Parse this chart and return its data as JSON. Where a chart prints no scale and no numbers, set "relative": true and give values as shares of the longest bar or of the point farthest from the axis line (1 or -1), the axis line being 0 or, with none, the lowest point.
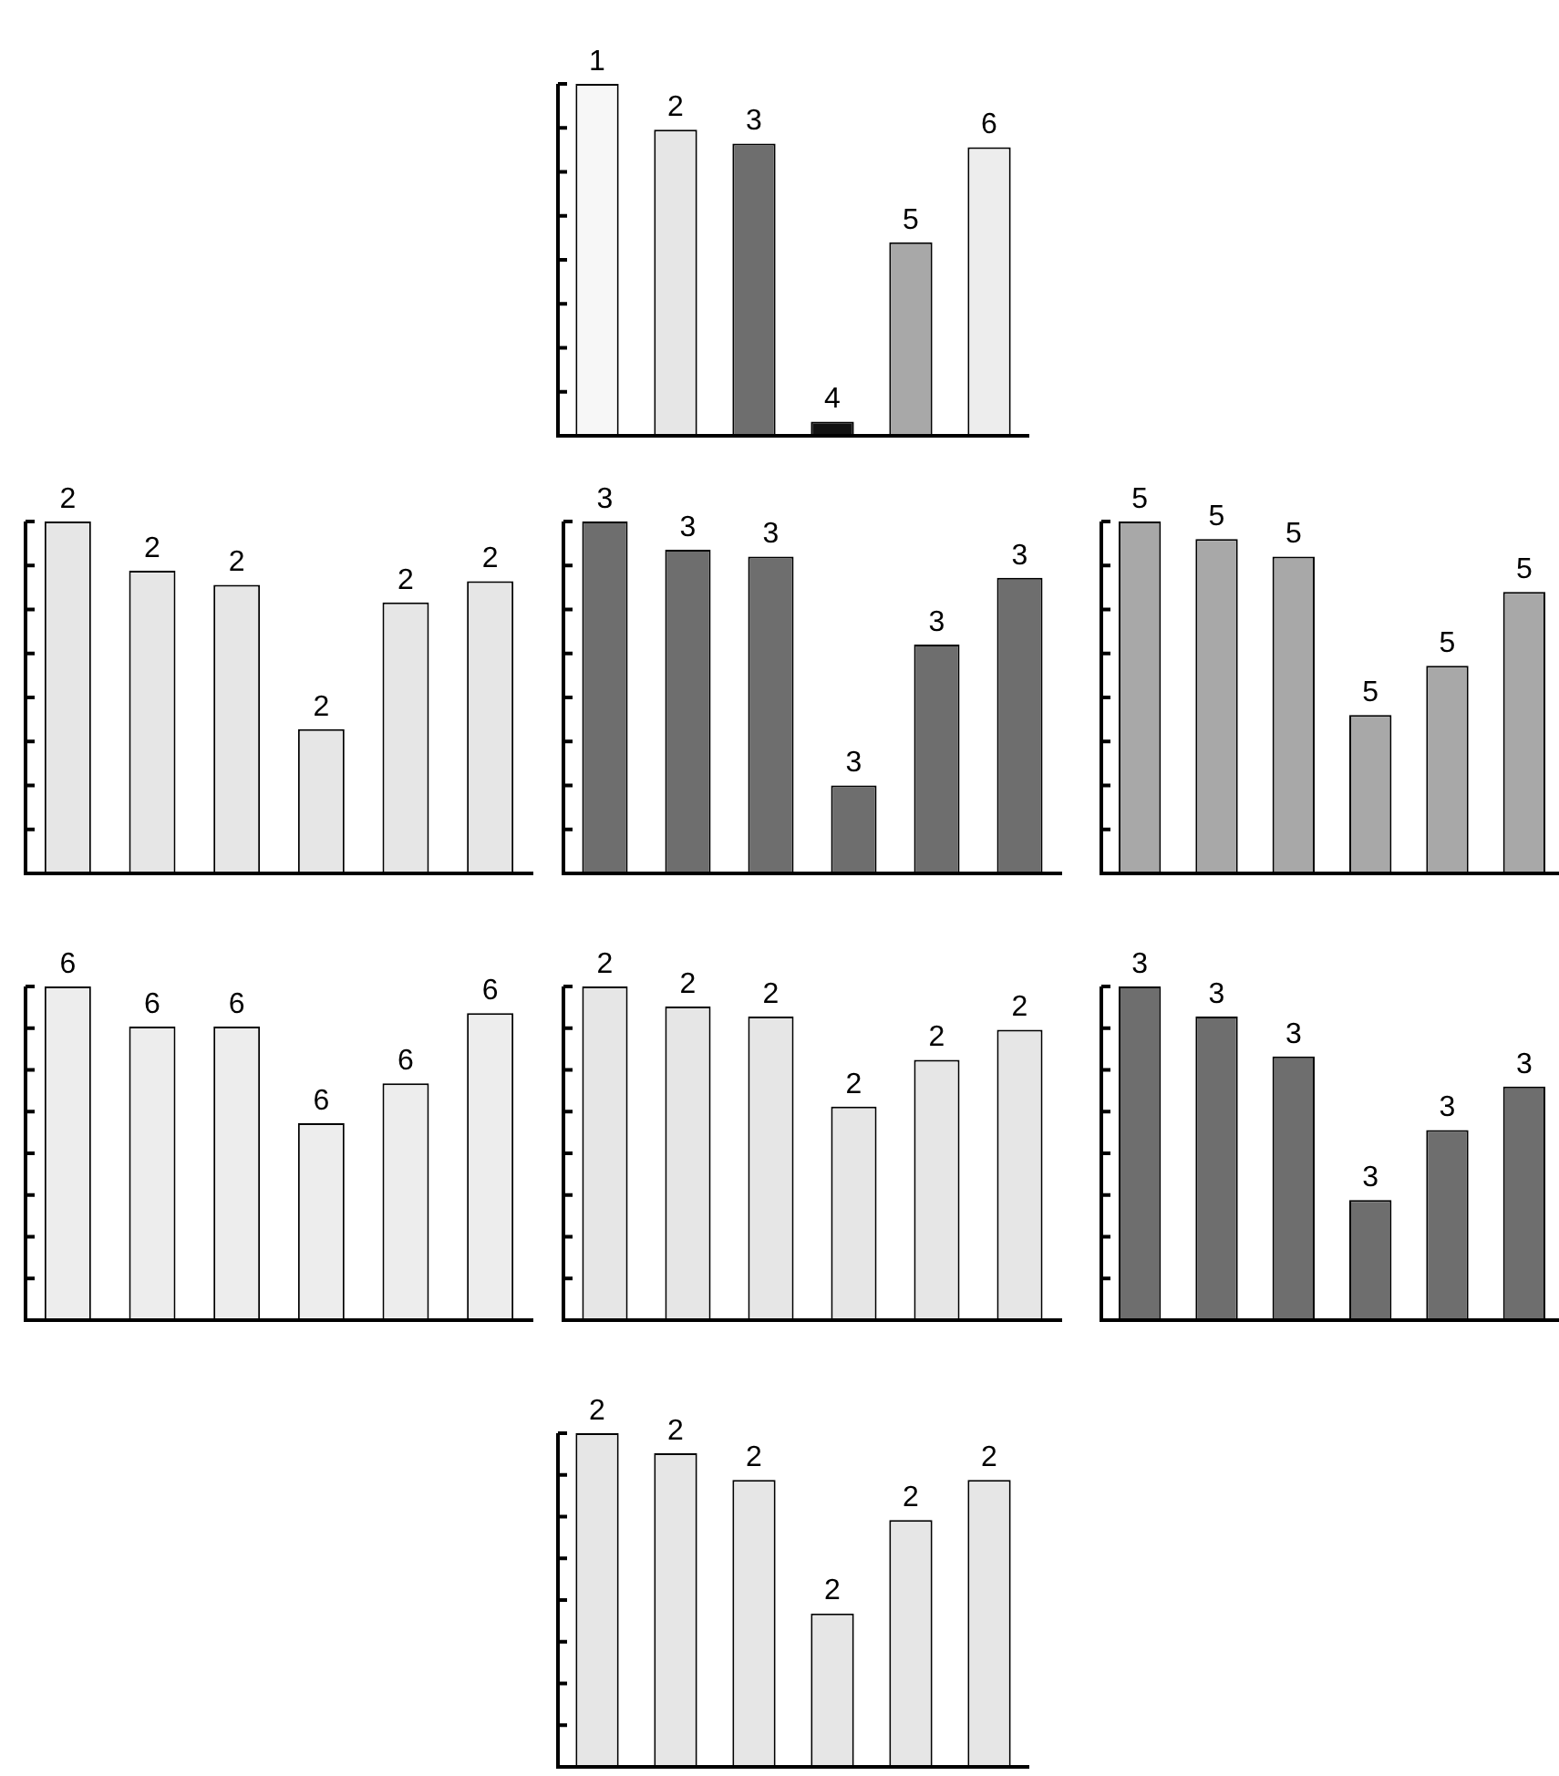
{
  "chart_data": [
    {
      "type": "bar",
      "relative": true,
      "categories": [
        null,
        null,
        null,
        null,
        null,
        null
      ],
      "values": [
        1,
        0.87,
        0.83,
        0.04,
        0.55,
        0.82
      ],
      "colors": [
        "#f7f7f7",
        "#e6e6e6",
        "#6e6e6e",
        "#111111",
        "#a8a8a8",
        "#ededed"
      ],
      "annotations": [
        "1",
        "2",
        "3",
        "4",
        "5",
        "6"
      ]
    },
    {
      "type": "bar",
      "relative": true,
      "categories": [
        null,
        null,
        null,
        null,
        null,
        null
      ],
      "values": [
        1,
        0.86,
        0.82,
        0.41,
        0.77,
        0.83
      ],
      "colors": [
        "#e6e6e6",
        "#e6e6e6",
        "#e6e6e6",
        "#e6e6e6",
        "#e6e6e6",
        "#e6e6e6"
      ],
      "annotations": [
        "2",
        "2",
        "2",
        "2",
        "2",
        "2"
      ]
    },
    {
      "type": "bar",
      "relative": true,
      "categories": [
        null,
        null,
        null,
        null,
        null,
        null
      ],
      "values": [
        1,
        0.92,
        0.9,
        0.25,
        0.65,
        0.84
      ],
      "colors": [
        "#6e6e6e",
        "#6e6e6e",
        "#6e6e6e",
        "#6e6e6e",
        "#6e6e6e",
        "#6e6e6e"
      ],
      "annotations": [
        "3",
        "3",
        "3",
        "3",
        "3",
        "3"
      ]
    },
    {
      "type": "bar",
      "relative": true,
      "categories": [
        null,
        null,
        null,
        null,
        null,
        null
      ],
      "values": [
        1,
        0.95,
        0.9,
        0.45,
        0.59,
        0.8
      ],
      "colors": [
        "#a8a8a8",
        "#a8a8a8",
        "#a8a8a8",
        "#a8a8a8",
        "#a8a8a8",
        "#a8a8a8"
      ],
      "annotations": [
        "5",
        "5",
        "5",
        "5",
        "5",
        "5"
      ]
    },
    {
      "type": "bar",
      "relative": true,
      "categories": [
        null,
        null,
        null,
        null,
        null,
        null
      ],
      "values": [
        1,
        0.88,
        0.88,
        0.59,
        0.71,
        0.92
      ],
      "colors": [
        "#ededed",
        "#ededed",
        "#ededed",
        "#ededed",
        "#ededed",
        "#ededed"
      ],
      "annotations": [
        "6",
        "6",
        "6",
        "6",
        "6",
        "6"
      ]
    },
    {
      "type": "bar",
      "relative": true,
      "categories": [
        null,
        null,
        null,
        null,
        null,
        null
      ],
      "values": [
        1,
        0.94,
        0.91,
        0.64,
        0.78,
        0.87
      ],
      "colors": [
        "#e6e6e6",
        "#e6e6e6",
        "#e6e6e6",
        "#e6e6e6",
        "#e6e6e6",
        "#e6e6e6"
      ],
      "annotations": [
        "2",
        "2",
        "2",
        "2",
        "2",
        "2"
      ]
    },
    {
      "type": "bar",
      "relative": true,
      "categories": [
        null,
        null,
        null,
        null,
        null,
        null
      ],
      "values": [
        1,
        0.91,
        0.79,
        0.36,
        0.57,
        0.7
      ],
      "colors": [
        "#6e6e6e",
        "#6e6e6e",
        "#6e6e6e",
        "#6e6e6e",
        "#6e6e6e",
        "#6e6e6e"
      ],
      "annotations": [
        "3",
        "3",
        "3",
        "3",
        "3",
        "3"
      ]
    },
    {
      "type": "bar",
      "relative": true,
      "categories": [
        null,
        null,
        null,
        null,
        null,
        null
      ],
      "values": [
        1,
        0.94,
        0.86,
        0.46,
        0.74,
        0.86
      ],
      "colors": [
        "#e6e6e6",
        "#e6e6e6",
        "#e6e6e6",
        "#e6e6e6",
        "#e6e6e6",
        "#e6e6e6"
      ],
      "annotations": [
        "2",
        "2",
        "2",
        "2",
        "2",
        "2"
      ]
    }
  ]
}
